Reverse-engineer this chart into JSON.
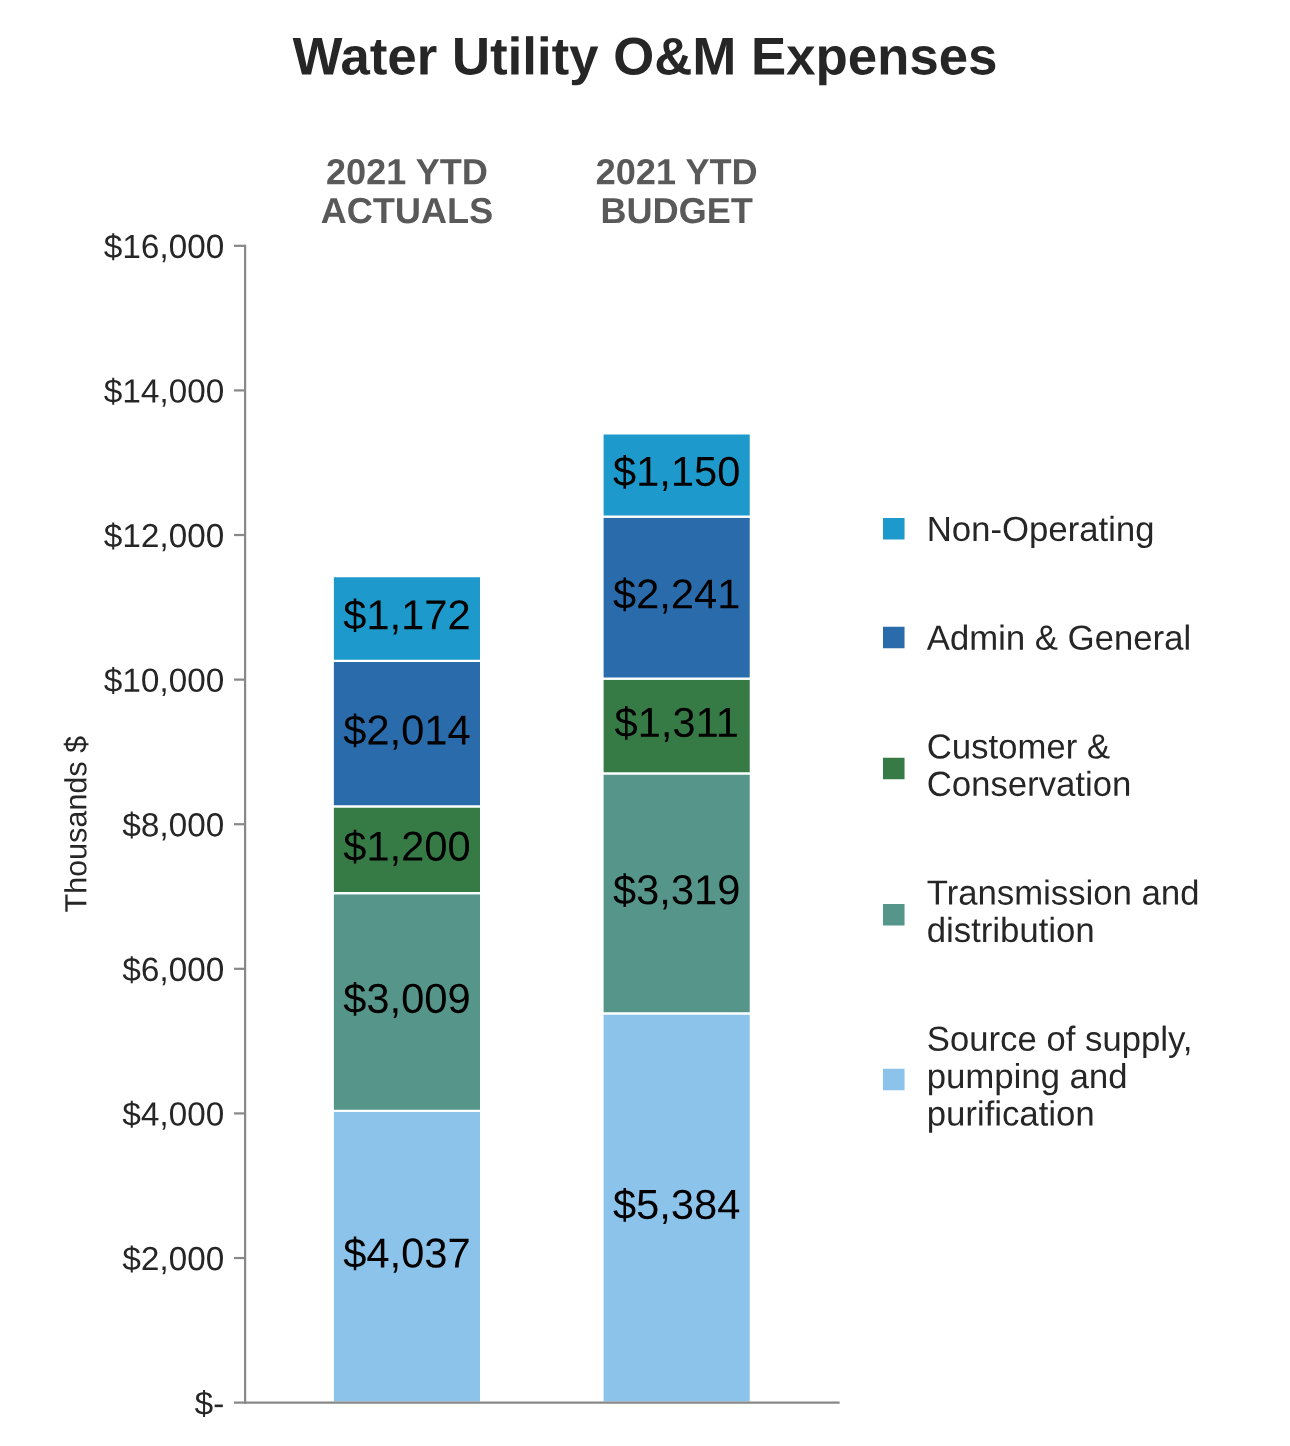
{
  "chart_data": {
    "type": "bar",
    "title": "Water Utility O&M Expenses",
    "ylabel": "Thousands $",
    "categories": [
      "2021 YTD\nACTUALS",
      "2021 YTD\nBUDGET"
    ],
    "stacked": true,
    "series": [
      {
        "name": "Source of supply,\npumping and\npurification",
        "color": "#8bc3ea",
        "values": [
          4037,
          5384
        ]
      },
      {
        "name": "Transmission and\ndistribution",
        "color": "#56958a",
        "values": [
          3009,
          3319
        ]
      },
      {
        "name": "Customer &\nConservation",
        "color": "#367a45",
        "values": [
          1200,
          1311
        ]
      },
      {
        "name": "Admin & General",
        "color": "#2a6bab",
        "values": [
          2014,
          2241
        ]
      },
      {
        "name": "Non-Operating",
        "color": "#1d9acb",
        "values": [
          1172,
          1150
        ]
      }
    ],
    "value_labels": [
      [
        "$4,037",
        "$5,384"
      ],
      [
        "$3,009",
        "$3,319"
      ],
      [
        "$1,200",
        "$1,311"
      ],
      [
        "$2,014",
        "$2,241"
      ],
      [
        "$1,172",
        "$1,150"
      ]
    ],
    "ylim": [
      0,
      16000
    ],
    "yticks": [
      {
        "value": 0,
        "label": "$-"
      },
      {
        "value": 2000,
        "label": "$2,000"
      },
      {
        "value": 4000,
        "label": "$4,000"
      },
      {
        "value": 6000,
        "label": "$6,000"
      },
      {
        "value": 8000,
        "label": "$8,000"
      },
      {
        "value": 10000,
        "label": "$10,000"
      },
      {
        "value": 12000,
        "label": "$12,000"
      },
      {
        "value": 14000,
        "label": "$14,000"
      },
      {
        "value": 16000,
        "label": "$16,000"
      }
    ],
    "grid": false,
    "legend": "right"
  }
}
